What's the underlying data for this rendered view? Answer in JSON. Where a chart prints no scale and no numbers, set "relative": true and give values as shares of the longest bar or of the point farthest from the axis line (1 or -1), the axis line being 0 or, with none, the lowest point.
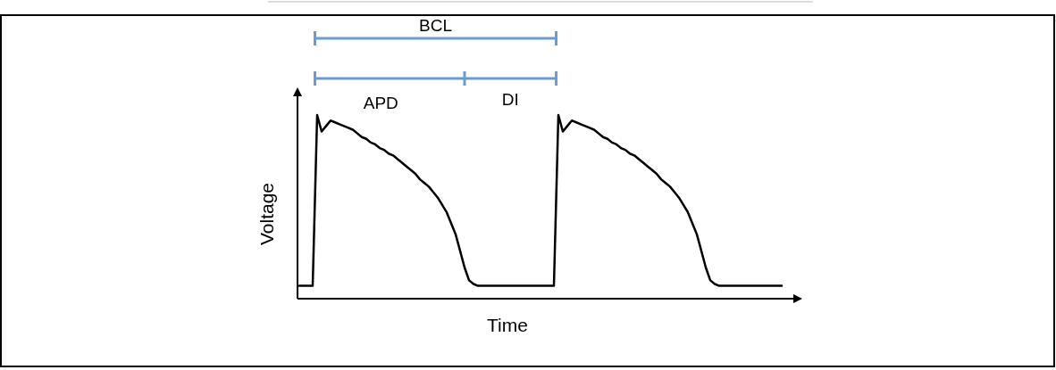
{
  "chart_data": {
    "type": "line",
    "relative": true,
    "xlabel": "Time",
    "ylabel": "Voltage",
    "annotations": [
      "BCL",
      "APD",
      "DI"
    ],
    "categories": [
      null,
      null,
      null,
      null,
      null,
      null,
      null,
      null,
      null,
      null,
      null,
      null,
      null,
      null,
      null,
      null,
      null,
      null,
      null,
      null,
      null,
      null,
      null,
      null,
      null,
      null,
      null,
      null,
      null,
      null,
      null,
      null,
      null,
      null,
      null,
      null,
      null,
      null,
      null,
      null,
      null,
      null,
      null,
      null,
      null,
      null,
      null,
      null,
      null,
      null,
      null,
      null,
      null,
      null,
      null,
      null,
      null,
      null,
      null,
      null,
      null,
      null,
      null,
      null,
      null,
      null,
      null,
      null,
      null,
      null,
      null,
      null,
      null,
      null,
      null,
      null,
      null,
      null,
      null,
      null,
      null,
      null,
      null,
      null,
      null,
      null,
      null,
      null,
      null,
      null,
      null,
      null,
      null,
      null,
      null,
      null,
      null,
      null,
      null,
      null,
      null,
      null,
      null,
      null,
      null,
      null,
      null,
      null,
      null
    ],
    "series": [
      {
        "color": "#000000",
        "values": [
          0.07,
          0.07,
          0.07,
          0.07,
          1.0,
          0.91,
          0.94,
          0.97,
          0.96,
          0.95,
          0.94,
          0.93,
          0.92,
          0.9,
          0.88,
          0.87,
          0.85,
          0.84,
          0.82,
          0.81,
          0.79,
          0.78,
          0.76,
          0.74,
          0.72,
          0.7,
          0.68,
          0.65,
          0.63,
          0.61,
          0.58,
          0.55,
          0.51,
          0.47,
          0.41,
          0.35,
          0.26,
          0.17,
          0.1,
          0.08,
          0.07,
          0.07,
          0.07,
          0.07,
          0.07,
          0.07,
          0.07,
          0.07,
          0.07,
          0.07,
          0.07,
          0.07,
          0.07,
          0.07,
          0.07,
          0.07,
          0.07,
          0.07,
          1.0,
          0.91,
          0.94,
          0.97,
          0.96,
          0.95,
          0.94,
          0.93,
          0.92,
          0.9,
          0.88,
          0.87,
          0.85,
          0.84,
          0.82,
          0.81,
          0.79,
          0.78,
          0.76,
          0.74,
          0.72,
          0.7,
          0.68,
          0.65,
          0.63,
          0.61,
          0.58,
          0.55,
          0.51,
          0.47,
          0.41,
          0.35,
          0.26,
          0.17,
          0.1,
          0.08,
          0.07,
          0.07,
          0.07,
          0.07,
          0.07,
          0.07,
          0.07,
          0.07,
          0.07,
          0.07,
          0.07,
          0.07,
          0.07,
          0.07,
          0.07
        ]
      }
    ]
  }
}
